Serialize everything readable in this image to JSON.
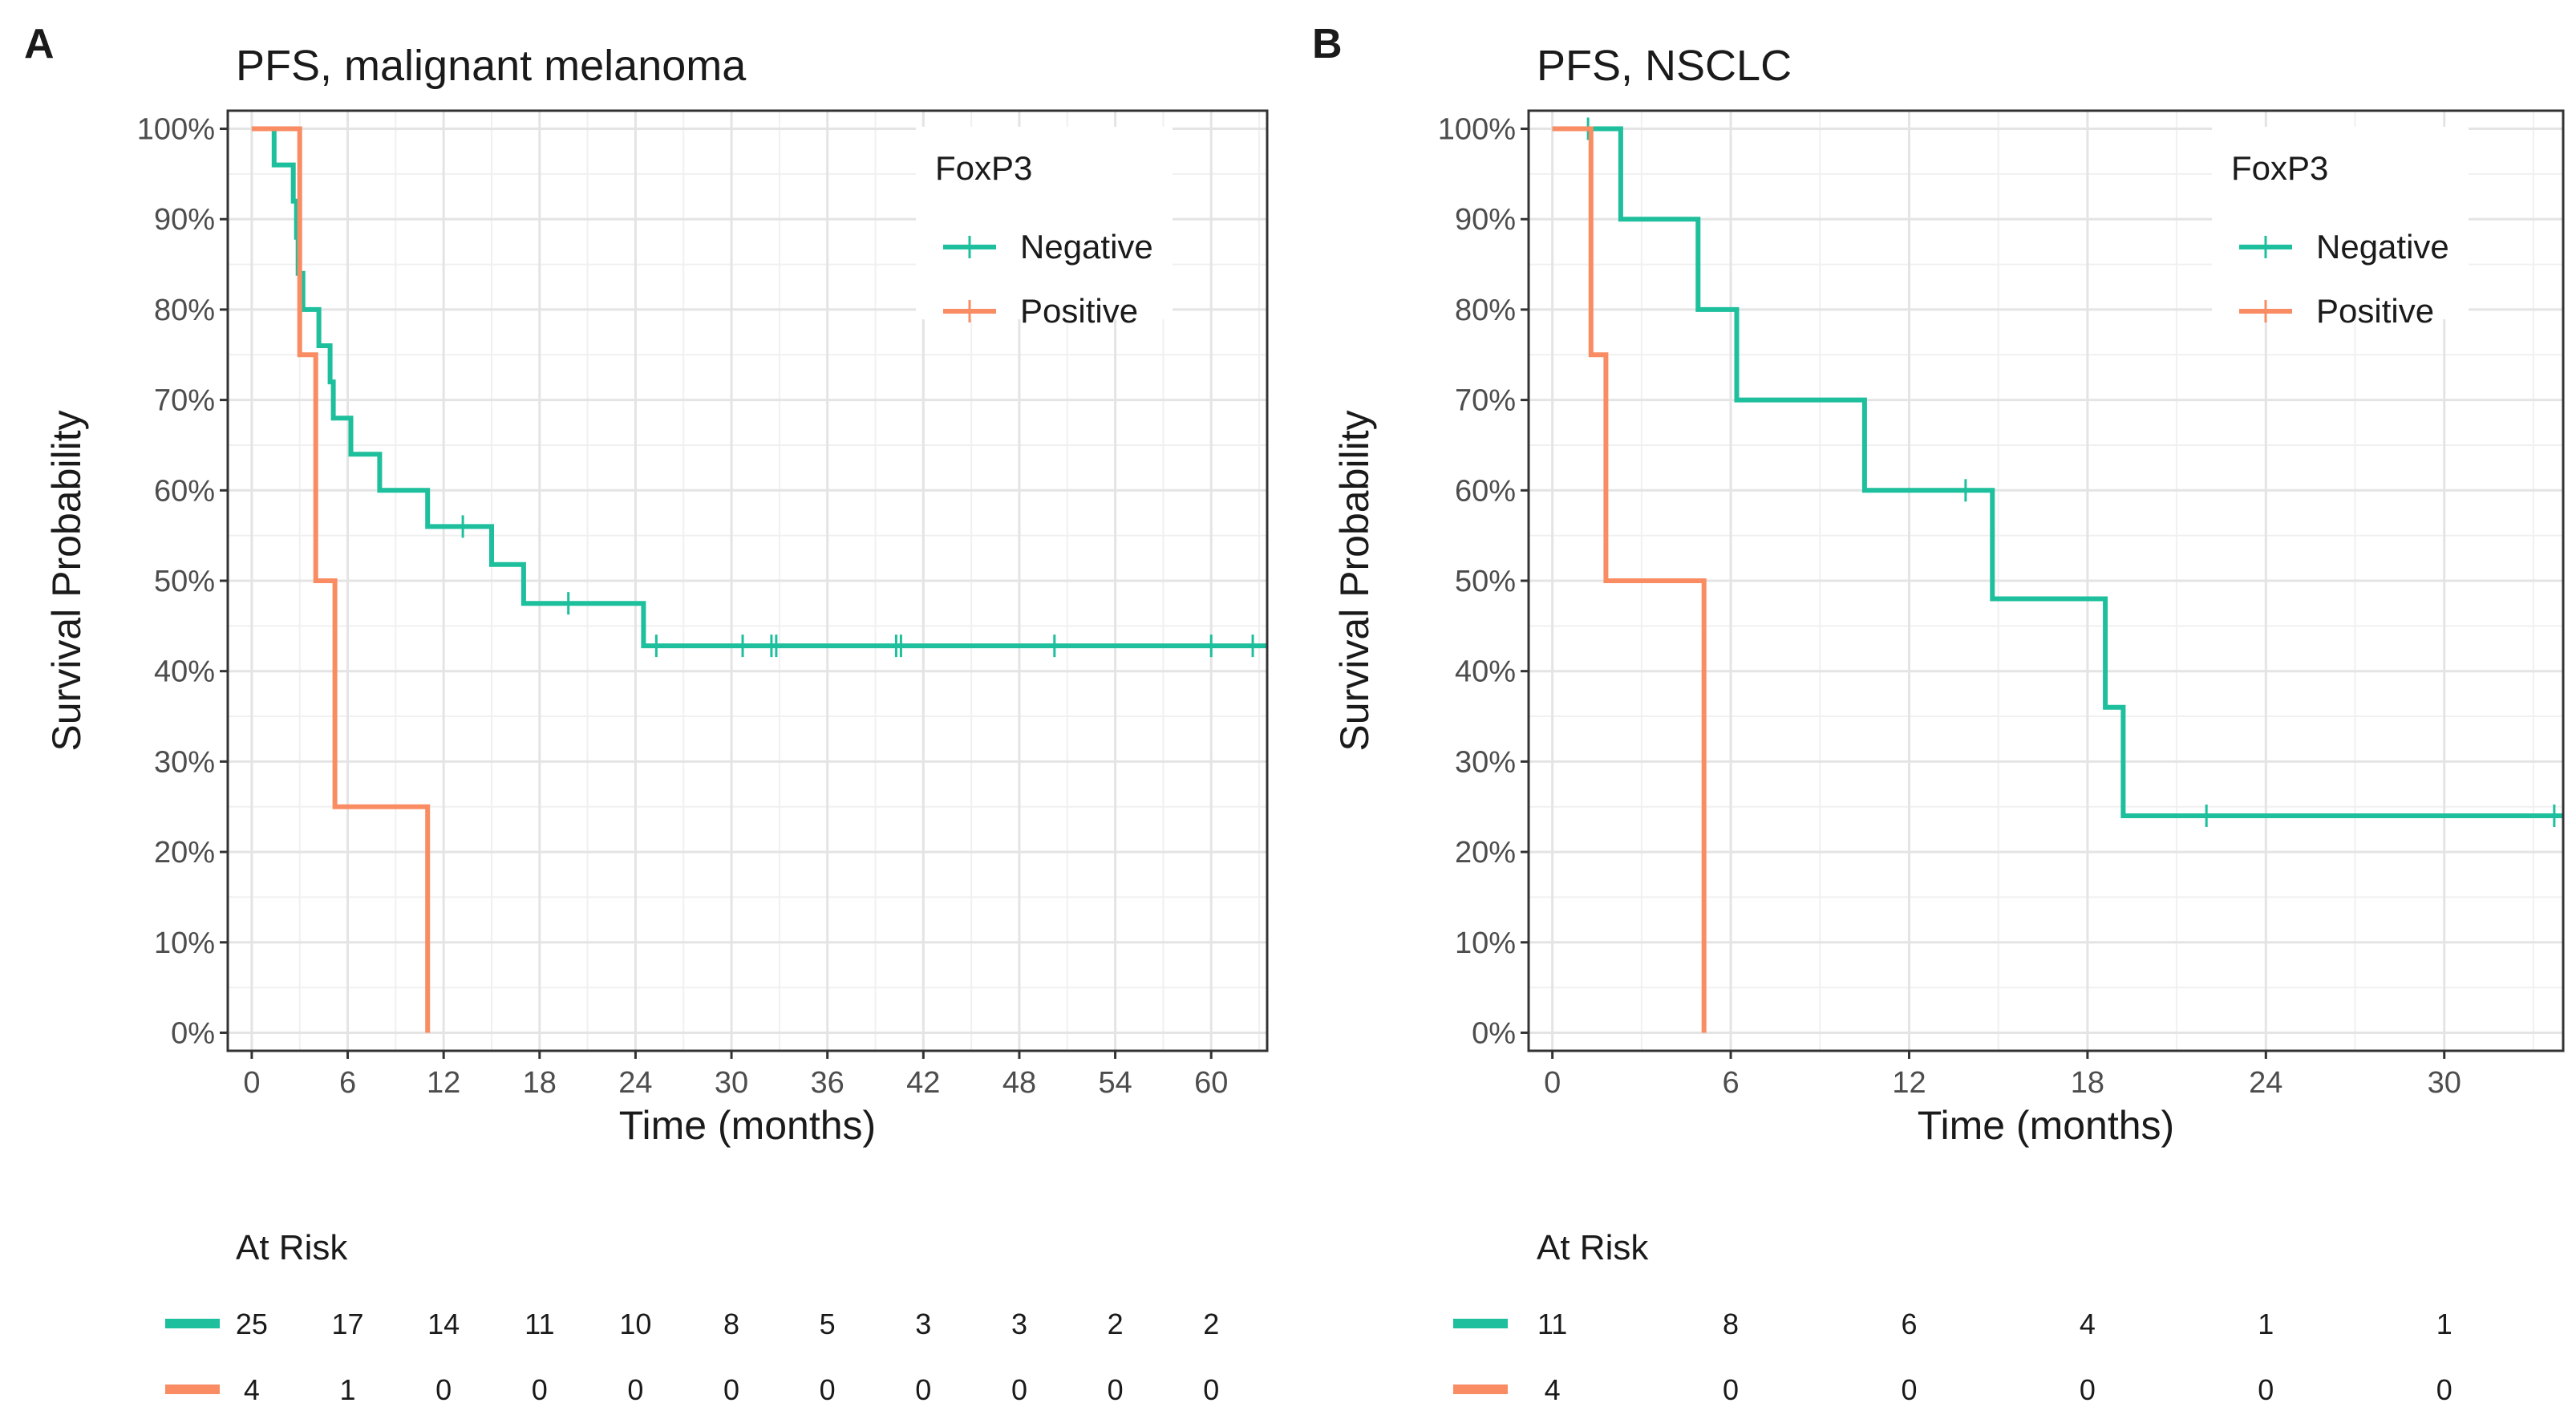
{
  "chart_data": [
    {
      "panel_letter": "A",
      "type": "line",
      "subtype": "kaplan-meier-step",
      "title": "PFS, malignant melanoma",
      "xlabel": "Time (months)",
      "ylabel": "Survival Probability",
      "xlim": [
        -1.5,
        63.5
      ],
      "ylim": [
        -0.02,
        1.02
      ],
      "x_ticks": [
        0,
        6,
        12,
        18,
        24,
        30,
        36,
        42,
        48,
        54,
        60
      ],
      "y_ticks": [
        0,
        0.1,
        0.2,
        0.3,
        0.4,
        0.5,
        0.6,
        0.7,
        0.8,
        0.9,
        1.0
      ],
      "y_tick_labels": [
        "0%",
        "10%",
        "20%",
        "30%",
        "40%",
        "50%",
        "60%",
        "70%",
        "80%",
        "90%",
        "100%"
      ],
      "x_tick_labels": [
        "0",
        "6",
        "12",
        "18",
        "24",
        "30",
        "36",
        "42",
        "48",
        "54",
        "60"
      ],
      "legend": {
        "title": "FoxP3",
        "position": "top-right",
        "entries": [
          "Negative",
          "Positive"
        ]
      },
      "series": [
        {
          "name": "Negative",
          "color": "#1dbf9c",
          "steps": [
            [
              0,
              1.0
            ],
            [
              1.4,
              1.0
            ],
            [
              1.4,
              0.96
            ],
            [
              2.6,
              0.96
            ],
            [
              2.6,
              0.92
            ],
            [
              2.8,
              0.92
            ],
            [
              2.8,
              0.88
            ],
            [
              2.9,
              0.88
            ],
            [
              2.9,
              0.84
            ],
            [
              3.2,
              0.84
            ],
            [
              3.2,
              0.8
            ],
            [
              4.2,
              0.8
            ],
            [
              4.2,
              0.76
            ],
            [
              4.9,
              0.76
            ],
            [
              4.9,
              0.72
            ],
            [
              5.1,
              0.72
            ],
            [
              5.1,
              0.68
            ],
            [
              6.2,
              0.68
            ],
            [
              6.2,
              0.64
            ],
            [
              8.0,
              0.64
            ],
            [
              8.0,
              0.6
            ],
            [
              11.0,
              0.6
            ],
            [
              11.0,
              0.56
            ],
            [
              15.0,
              0.56
            ],
            [
              15.0,
              0.518
            ],
            [
              17.0,
              0.518
            ],
            [
              17.0,
              0.475
            ],
            [
              24.5,
              0.475
            ],
            [
              24.5,
              0.428
            ],
            [
              63.5,
              0.428
            ]
          ],
          "censor_x": [
            13.2,
            19.8,
            25.3,
            30.7,
            32.5,
            32.8,
            40.3,
            40.6,
            50.2,
            60.0,
            62.6
          ],
          "at_risk": [
            25,
            17,
            14,
            11,
            10,
            8,
            5,
            3,
            3,
            2,
            2
          ]
        },
        {
          "name": "Positive",
          "color": "#f98c62",
          "steps": [
            [
              0,
              1.0
            ],
            [
              3.0,
              1.0
            ],
            [
              3.0,
              0.75
            ],
            [
              4.0,
              0.75
            ],
            [
              4.0,
              0.5
            ],
            [
              5.2,
              0.5
            ],
            [
              5.2,
              0.25
            ],
            [
              11.0,
              0.25
            ],
            [
              11.0,
              0.0
            ]
          ],
          "censor_x": [],
          "at_risk": [
            4,
            1,
            0,
            0,
            0,
            0,
            0,
            0,
            0,
            0,
            0
          ]
        }
      ],
      "at_risk_title": "At Risk"
    },
    {
      "panel_letter": "B",
      "type": "line",
      "subtype": "kaplan-meier-step",
      "title": "PFS, NSCLC",
      "xlabel": "Time (months)",
      "ylabel": "Survival Probability",
      "xlim": [
        -0.8,
        34.0
      ],
      "ylim": [
        -0.02,
        1.02
      ],
      "x_ticks": [
        0,
        6,
        12,
        18,
        24,
        30
      ],
      "y_ticks": [
        0,
        0.1,
        0.2,
        0.3,
        0.4,
        0.5,
        0.6,
        0.7,
        0.8,
        0.9,
        1.0
      ],
      "y_tick_labels": [
        "0%",
        "10%",
        "20%",
        "30%",
        "40%",
        "50%",
        "60%",
        "70%",
        "80%",
        "90%",
        "100%"
      ],
      "x_tick_labels": [
        "0",
        "6",
        "12",
        "18",
        "24",
        "30"
      ],
      "legend": {
        "title": "FoxP3",
        "position": "top-right",
        "entries": [
          "Negative",
          "Positive"
        ]
      },
      "series": [
        {
          "name": "Negative",
          "color": "#1dbf9c",
          "steps": [
            [
              0,
              1.0
            ],
            [
              2.3,
              1.0
            ],
            [
              2.3,
              0.9
            ],
            [
              4.9,
              0.9
            ],
            [
              4.9,
              0.8
            ],
            [
              6.2,
              0.8
            ],
            [
              6.2,
              0.7
            ],
            [
              10.5,
              0.7
            ],
            [
              10.5,
              0.6
            ],
            [
              14.8,
              0.6
            ],
            [
              14.8,
              0.48
            ],
            [
              18.6,
              0.48
            ],
            [
              18.6,
              0.36
            ],
            [
              19.2,
              0.36
            ],
            [
              19.2,
              0.24
            ],
            [
              34.0,
              0.24
            ]
          ],
          "censor_x": [
            1.2,
            13.9,
            22.0,
            33.7
          ],
          "at_risk": [
            11,
            8,
            6,
            4,
            1,
            1
          ]
        },
        {
          "name": "Positive",
          "color": "#f98c62",
          "steps": [
            [
              0,
              1.0
            ],
            [
              1.3,
              1.0
            ],
            [
              1.3,
              0.75
            ],
            [
              1.8,
              0.75
            ],
            [
              1.8,
              0.5
            ],
            [
              5.1,
              0.5
            ],
            [
              5.1,
              0.0
            ]
          ],
          "censor_x": [],
          "at_risk": [
            4,
            0,
            0,
            0,
            0,
            0
          ]
        }
      ],
      "at_risk_title": "At Risk"
    }
  ]
}
